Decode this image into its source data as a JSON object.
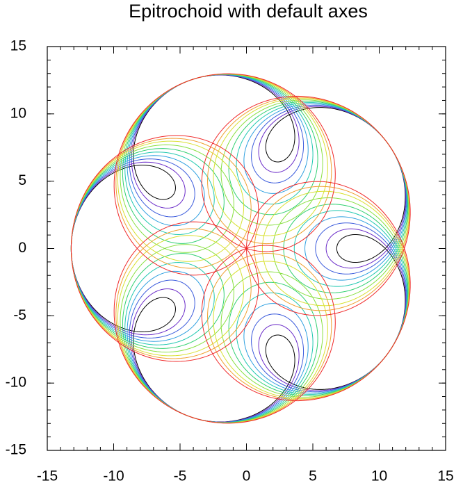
{
  "chart_data": {
    "type": "epitrochoid",
    "title": "Epitrochoid with default axes",
    "frequency": 6,
    "xlim": [
      -15,
      15
    ],
    "ylim": [
      -15,
      15
    ],
    "xticks": [
      -15,
      -10,
      -5,
      0,
      5,
      10,
      15
    ],
    "yticks": [
      -15,
      -10,
      -5,
      0,
      5,
      10,
      15
    ],
    "minor_step": 1,
    "series": [
      {
        "color": "#000000",
        "a": 10.0,
        "d": 3.2
      },
      {
        "color": "#6a2bc8",
        "a": 9.6,
        "d": 3.6
      },
      {
        "color": "#3b5bdc",
        "a": 9.2,
        "d": 4.0
      },
      {
        "color": "#2fa0e0",
        "a": 8.8,
        "d": 4.4
      },
      {
        "color": "#20c8b0",
        "a": 8.4,
        "d": 4.8
      },
      {
        "color": "#30d070",
        "a": 8.0,
        "d": 5.2
      },
      {
        "color": "#88e040",
        "a": 7.6,
        "d": 5.6
      },
      {
        "color": "#d8e030",
        "a": 7.2,
        "d": 6.0
      },
      {
        "color": "#f0a030",
        "a": 6.9,
        "d": 6.3
      },
      {
        "color": "#f02828",
        "a": 6.6,
        "d": 6.6
      }
    ]
  }
}
